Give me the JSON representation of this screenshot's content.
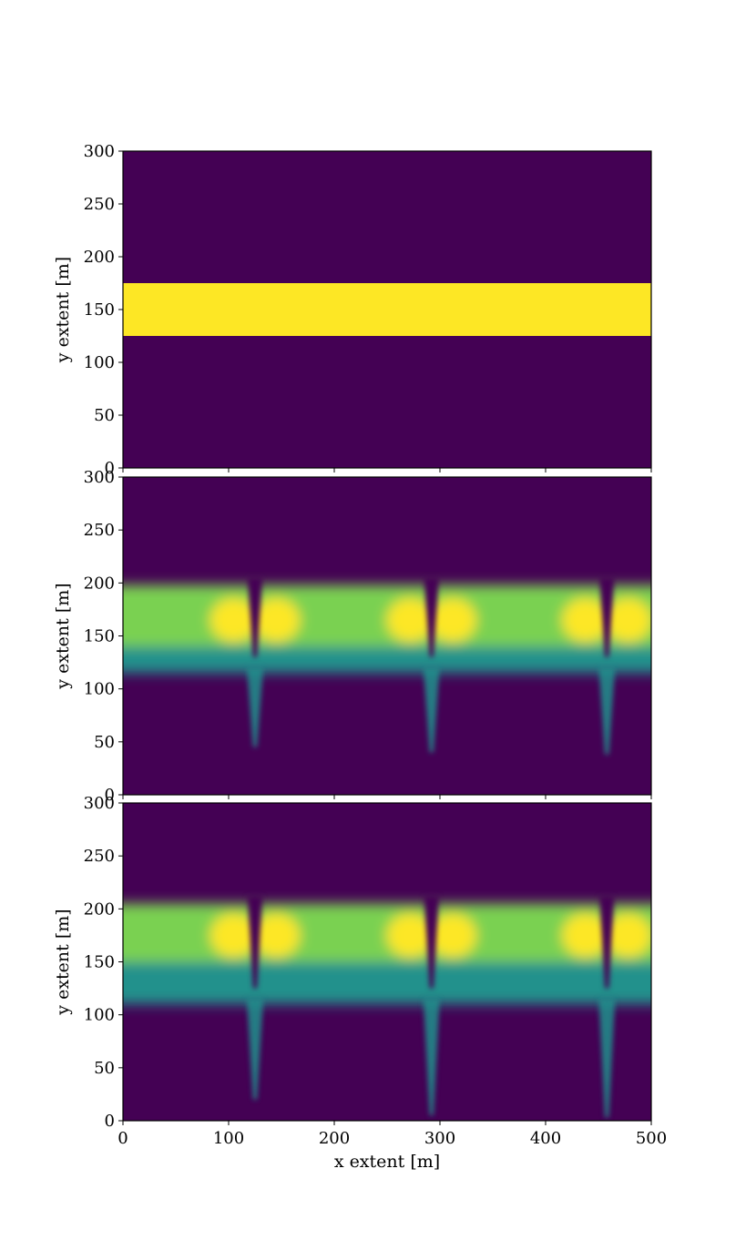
{
  "chart_data": [
    {
      "type": "heatmap",
      "title": "",
      "xlabel": "",
      "ylabel": "y extent [m]",
      "xlim": [
        0,
        500
      ],
      "ylim": [
        0,
        300
      ],
      "xticks": [
        0,
        100,
        200,
        300,
        400,
        500
      ],
      "yticks": [
        0,
        50,
        100,
        150,
        200,
        250,
        300
      ],
      "xtick_labels_shown": false,
      "colormap": "viridis",
      "grid": false,
      "legend": "none",
      "description_values": {
        "background_value": 0.0,
        "band": {
          "y_from": 125,
          "y_to": 175,
          "value": 1.0
        }
      }
    },
    {
      "type": "heatmap",
      "title": "",
      "xlabel": "",
      "ylabel": "y extent [m]",
      "xlim": [
        0,
        500
      ],
      "ylim": [
        0,
        300
      ],
      "xticks": [
        0,
        100,
        200,
        300,
        400,
        500
      ],
      "yticks": [
        0,
        50,
        100,
        150,
        200,
        250,
        300
      ],
      "xtick_labels_shown": false,
      "colormap": "viridis",
      "grid": false,
      "legend": "none",
      "description_values": {
        "plume_top": 200,
        "plume_bottom": 115,
        "cusp_x": [
          125,
          292,
          458
        ],
        "cusp_tip_y": [
          45,
          40,
          38
        ],
        "hotspot_y": 165
      }
    },
    {
      "type": "heatmap",
      "title": "",
      "xlabel": "x extent [m]",
      "ylabel": "y extent [m]",
      "xlim": [
        0,
        500
      ],
      "ylim": [
        0,
        300
      ],
      "xticks": [
        0,
        100,
        200,
        300,
        400,
        500
      ],
      "yticks": [
        0,
        50,
        100,
        150,
        200,
        250,
        300
      ],
      "xtick_labels_shown": true,
      "colormap": "viridis",
      "grid": false,
      "legend": "none",
      "description_values": {
        "plume_top": 207,
        "plume_bottom": 110,
        "cusp_x": [
          125,
          292,
          458
        ],
        "cusp_tip_y": [
          20,
          5,
          3
        ],
        "hotspot_y": 175
      }
    }
  ],
  "colors": {
    "viridis_low": "#440154",
    "viridis_mid": "#21918c",
    "viridis_high": "#fde725"
  }
}
